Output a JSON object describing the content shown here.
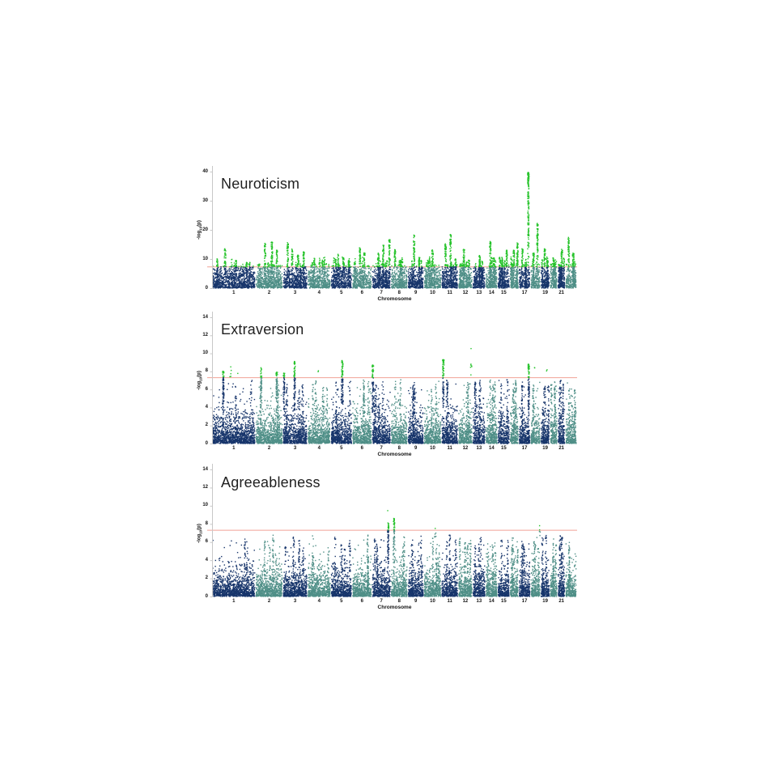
{
  "page": {
    "background": "#ffffff"
  },
  "colors": {
    "chrom_odd": "#17356b",
    "chrom_even": "#4f8f87",
    "significant": "#26c32b",
    "threshold_line": "#f0988b",
    "axis": "#c8c8c8",
    "text": "#111111",
    "title_text": "#1f1f1f"
  },
  "chromosomes": {
    "labels": [
      "1",
      "2",
      "3",
      "4",
      "5",
      "6",
      "7",
      "8",
      "9",
      "10",
      "11",
      "12",
      "13",
      "14",
      "15",
      "",
      "17",
      "",
      "19",
      "",
      "21",
      ""
    ],
    "rel_widths": [
      0.119,
      0.0747,
      0.0676,
      0.0639,
      0.0585,
      0.0543,
      0.0517,
      0.0461,
      0.0443,
      0.0481,
      0.0459,
      0.0395,
      0.0355,
      0.0333,
      0.0333,
      0.0244,
      0.0322,
      0.0277,
      0.0255,
      0.0211,
      0.0211,
      0.0312
    ]
  },
  "chart_data": [
    {
      "type": "scatter",
      "variant": "manhattan",
      "title": "Neuroticism",
      "xlabel": "Chromosome",
      "ylabel": "-log10(p)",
      "ylabel_parts": {
        "prefix": "-log",
        "sub": "10",
        "suffix": "(p)"
      },
      "ylim": [
        0,
        40
      ],
      "yticks": [
        0,
        10,
        20,
        30,
        40
      ],
      "threshold": 7.3,
      "grid": false,
      "legend": false,
      "band": {
        "mean": 3.5,
        "cap": 8.1,
        "density": 16
      },
      "minor_spikes": {
        "per_chrom_min": 3,
        "per_chrom_max": 5,
        "h_min": 7.6,
        "h_max": 10.8
      },
      "peaks": [
        {
          "chr": 1,
          "pos": 0.12,
          "h": 10.0,
          "style": "tower"
        },
        {
          "chr": 1,
          "pos": 0.3,
          "h": 13.5,
          "style": "tower"
        },
        {
          "chr": 1,
          "pos": 0.55,
          "h": 9.5,
          "style": "tower"
        },
        {
          "chr": 1,
          "pos": 0.8,
          "h": 8.8,
          "style": "tower"
        },
        {
          "chr": 2,
          "pos": 0.35,
          "h": 15.3,
          "style": "tower"
        },
        {
          "chr": 2,
          "pos": 0.6,
          "h": 15.8,
          "style": "tower"
        },
        {
          "chr": 2,
          "pos": 0.78,
          "h": 13.0,
          "style": "tower"
        },
        {
          "chr": 3,
          "pos": 0.2,
          "h": 15.6,
          "style": "tower"
        },
        {
          "chr": 3,
          "pos": 0.38,
          "h": 13.4,
          "style": "tower"
        },
        {
          "chr": 3,
          "pos": 0.62,
          "h": 11.3,
          "style": "tower"
        },
        {
          "chr": 3,
          "pos": 0.85,
          "h": 12.4,
          "style": "tower"
        },
        {
          "chr": 4,
          "pos": 0.3,
          "h": 10.2,
          "style": "tower"
        },
        {
          "chr": 4,
          "pos": 0.65,
          "h": 9.6,
          "style": "tower"
        },
        {
          "chr": 5,
          "pos": 0.35,
          "h": 11.6,
          "style": "tower"
        },
        {
          "chr": 5,
          "pos": 0.6,
          "h": 10.4,
          "style": "tower"
        },
        {
          "chr": 5,
          "pos": 0.85,
          "h": 9.3,
          "style": "tower"
        },
        {
          "chr": 6,
          "pos": 0.4,
          "h": 13.8,
          "style": "tower"
        },
        {
          "chr": 6,
          "pos": 0.62,
          "h": 12.1,
          "style": "tower"
        },
        {
          "chr": 7,
          "pos": 0.35,
          "h": 12.0,
          "style": "tower"
        },
        {
          "chr": 7,
          "pos": 0.6,
          "h": 14.7,
          "style": "tower"
        },
        {
          "chr": 7,
          "pos": 0.93,
          "h": 16.6,
          "style": "tower"
        },
        {
          "chr": 8,
          "pos": 0.25,
          "h": 13.2,
          "style": "tower"
        },
        {
          "chr": 8,
          "pos": 0.6,
          "h": 9.5,
          "style": "tower"
        },
        {
          "chr": 9,
          "pos": 0.4,
          "h": 18.2,
          "style": "tower"
        },
        {
          "chr": 9,
          "pos": 0.72,
          "h": 10.5,
          "style": "tower"
        },
        {
          "chr": 10,
          "pos": 0.25,
          "h": 9.5,
          "style": "tower"
        },
        {
          "chr": 10,
          "pos": 0.5,
          "h": 13.1,
          "style": "tower"
        },
        {
          "chr": 11,
          "pos": 0.25,
          "h": 15.2,
          "style": "tower"
        },
        {
          "chr": 11,
          "pos": 0.55,
          "h": 18.4,
          "style": "tower"
        },
        {
          "chr": 11,
          "pos": 0.85,
          "h": 10.0,
          "style": "tower"
        },
        {
          "chr": 12,
          "pos": 0.4,
          "h": 13.3,
          "style": "tower"
        },
        {
          "chr": 12,
          "pos": 0.75,
          "h": 9.6,
          "style": "tower"
        },
        {
          "chr": 13,
          "pos": 0.55,
          "h": 11.2,
          "style": "tower"
        },
        {
          "chr": 14,
          "pos": 0.4,
          "h": 16.0,
          "style": "tower"
        },
        {
          "chr": 14,
          "pos": 0.7,
          "h": 10.3,
          "style": "tower"
        },
        {
          "chr": 15,
          "pos": 0.4,
          "h": 9.9,
          "style": "tower"
        },
        {
          "chr": 15,
          "pos": 0.75,
          "h": 13.0,
          "style": "tower"
        },
        {
          "chr": 16,
          "pos": 0.45,
          "h": 13.0,
          "style": "tower"
        },
        {
          "chr": 16,
          "pos": 0.85,
          "h": 15.5,
          "style": "tower"
        },
        {
          "chr": 17,
          "pos": 0.3,
          "h": 13.5,
          "style": "tower"
        },
        {
          "chr": 17,
          "pos": 0.82,
          "h": 39.7,
          "style": "tower"
        },
        {
          "chr": 18,
          "pos": 0.3,
          "h": 12.0,
          "style": "tower"
        },
        {
          "chr": 18,
          "pos": 0.7,
          "h": 22.2,
          "style": "tower"
        },
        {
          "chr": 19,
          "pos": 0.45,
          "h": 13.5,
          "style": "tower"
        },
        {
          "chr": 20,
          "pos": 0.55,
          "h": 9.6,
          "style": "tower"
        },
        {
          "chr": 21,
          "pos": 0.55,
          "h": 13.3,
          "style": "tower"
        },
        {
          "chr": 22,
          "pos": 0.3,
          "h": 17.4,
          "style": "tower"
        },
        {
          "chr": 22,
          "pos": 0.7,
          "h": 12.0,
          "style": "tower"
        }
      ]
    },
    {
      "type": "scatter",
      "variant": "manhattan",
      "title": "Extraversion",
      "xlabel": "Chromosome",
      "ylabel": "-log10(p)",
      "ylabel_parts": {
        "prefix": "-log",
        "sub": "10",
        "suffix": "(p)"
      },
      "ylim": [
        0,
        14
      ],
      "yticks": [
        0,
        2,
        4,
        6,
        8,
        10,
        12,
        14
      ],
      "threshold": 7.3,
      "grid": false,
      "legend": false,
      "band": {
        "mean": 1.15,
        "cap": 7.0,
        "density": 22
      },
      "minor_spikes": {
        "per_chrom_min": 2,
        "per_chrom_max": 4,
        "h_min": 5.8,
        "h_max": 7.1
      },
      "peaks": [
        {
          "chr": 1,
          "pos": 0.26,
          "h": 8.0,
          "style": "tower"
        },
        {
          "chr": 1,
          "pos": 0.43,
          "h": 8.5,
          "style": "dots"
        },
        {
          "chr": 1,
          "pos": 0.6,
          "h": 7.7,
          "style": "dot"
        },
        {
          "chr": 2,
          "pos": 0.21,
          "h": 8.4,
          "style": "tower"
        },
        {
          "chr": 2,
          "pos": 0.78,
          "h": 7.9,
          "style": "tower"
        },
        {
          "chr": 3,
          "pos": 0.05,
          "h": 7.8,
          "style": "tower"
        },
        {
          "chr": 3,
          "pos": 0.48,
          "h": 9.1,
          "style": "tower"
        },
        {
          "chr": 4,
          "pos": 0.45,
          "h": 8.0,
          "style": "dot"
        },
        {
          "chr": 5,
          "pos": 0.54,
          "h": 9.2,
          "style": "tower"
        },
        {
          "chr": 7,
          "pos": 0.05,
          "h": 8.7,
          "style": "tower"
        },
        {
          "chr": 11,
          "pos": 0.12,
          "h": 9.3,
          "style": "tower"
        },
        {
          "chr": 12,
          "pos": 0.89,
          "h": 8.8,
          "style": "dots"
        },
        {
          "chr": 12,
          "pos": 0.89,
          "h": 10.5,
          "style": "dot"
        },
        {
          "chr": 17,
          "pos": 0.85,
          "h": 8.8,
          "style": "tower"
        },
        {
          "chr": 18,
          "pos": 0.44,
          "h": 8.4,
          "style": "dot"
        },
        {
          "chr": 19,
          "pos": 0.65,
          "h": 8.1,
          "style": "dot"
        }
      ]
    },
    {
      "type": "scatter",
      "variant": "manhattan",
      "title": "Agreeableness",
      "xlabel": "Chromosome",
      "ylabel": "-log10(p)",
      "ylabel_parts": {
        "prefix": "-log",
        "sub": "10",
        "suffix": "(p)"
      },
      "ylim": [
        0,
        14
      ],
      "yticks": [
        0,
        2,
        4,
        6,
        8,
        10,
        12,
        14
      ],
      "threshold": 7.3,
      "grid": false,
      "legend": false,
      "band": {
        "mean": 1.0,
        "cap": 6.5,
        "density": 22
      },
      "minor_spikes": {
        "per_chrom_min": 2,
        "per_chrom_max": 4,
        "h_min": 5.2,
        "h_max": 6.8
      },
      "peaks": [
        {
          "chr": 7,
          "pos": 0.86,
          "h": 8.1,
          "style": "tower"
        },
        {
          "chr": 7,
          "pos": 0.86,
          "h": 9.4,
          "style": "dot"
        },
        {
          "chr": 8,
          "pos": 0.19,
          "h": 8.6,
          "style": "tower"
        },
        {
          "chr": 10,
          "pos": 0.65,
          "h": 7.5,
          "style": "dots"
        },
        {
          "chr": 18,
          "pos": 0.9,
          "h": 7.8,
          "style": "dots"
        }
      ]
    }
  ]
}
